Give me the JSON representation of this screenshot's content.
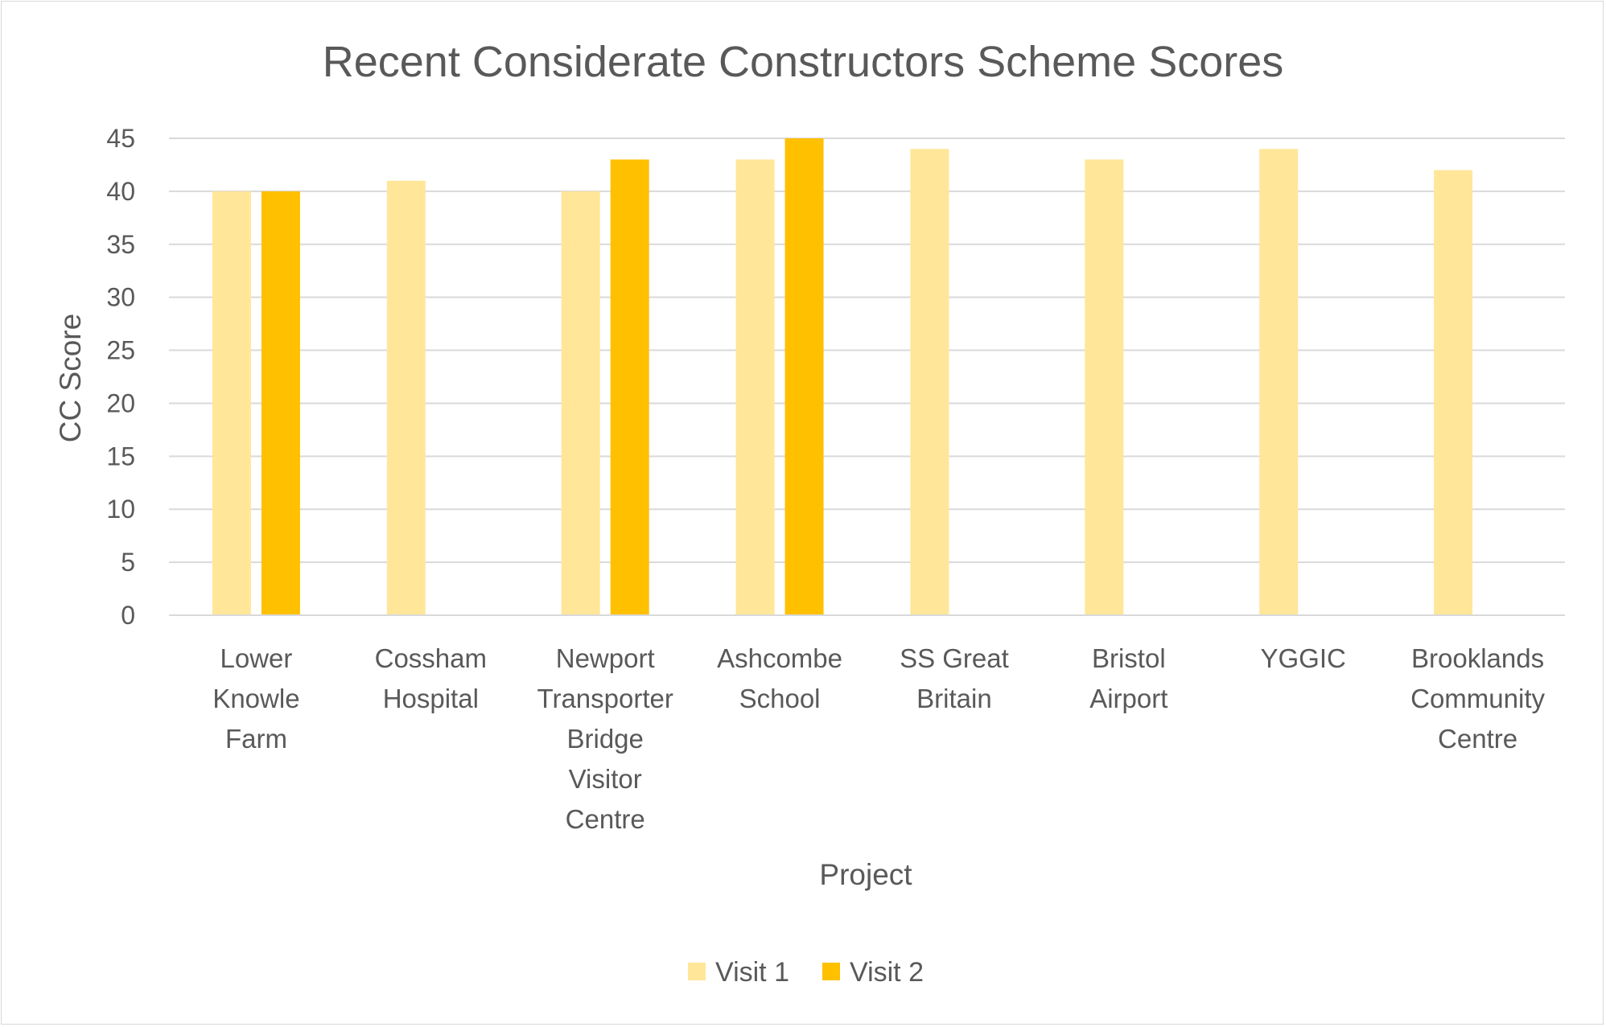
{
  "chart_data": {
    "type": "bar",
    "title": "Recent Considerate Constructors Scheme Scores",
    "xlabel": "Project",
    "ylabel": "CC Score",
    "ylim": [
      0,
      45
    ],
    "yticks": [
      "0",
      "5",
      "10",
      "15",
      "20",
      "25",
      "30",
      "35",
      "40",
      "45"
    ],
    "grid": true,
    "legend_position": "bottom",
    "categories": [
      [
        "Lower",
        "Knowle",
        "Farm"
      ],
      [
        "Cossham",
        "Hospital"
      ],
      [
        "Newport",
        "Transporter",
        "Bridge",
        "Visitor",
        "Centre"
      ],
      [
        "Ashcombe",
        "School"
      ],
      [
        "SS Great",
        "Britain"
      ],
      [
        "Bristol",
        "Airport"
      ],
      [
        "YGGIC"
      ],
      [
        "Brooklands",
        "Community",
        "Centre"
      ]
    ],
    "series": [
      {
        "name": "Visit 1",
        "color": "#ffe699",
        "values": [
          40,
          41,
          40,
          43,
          44,
          43,
          44,
          42
        ]
      },
      {
        "name": "Visit 2",
        "color": "#ffc000",
        "values": [
          40,
          null,
          43,
          45,
          null,
          null,
          null,
          null
        ]
      }
    ]
  }
}
